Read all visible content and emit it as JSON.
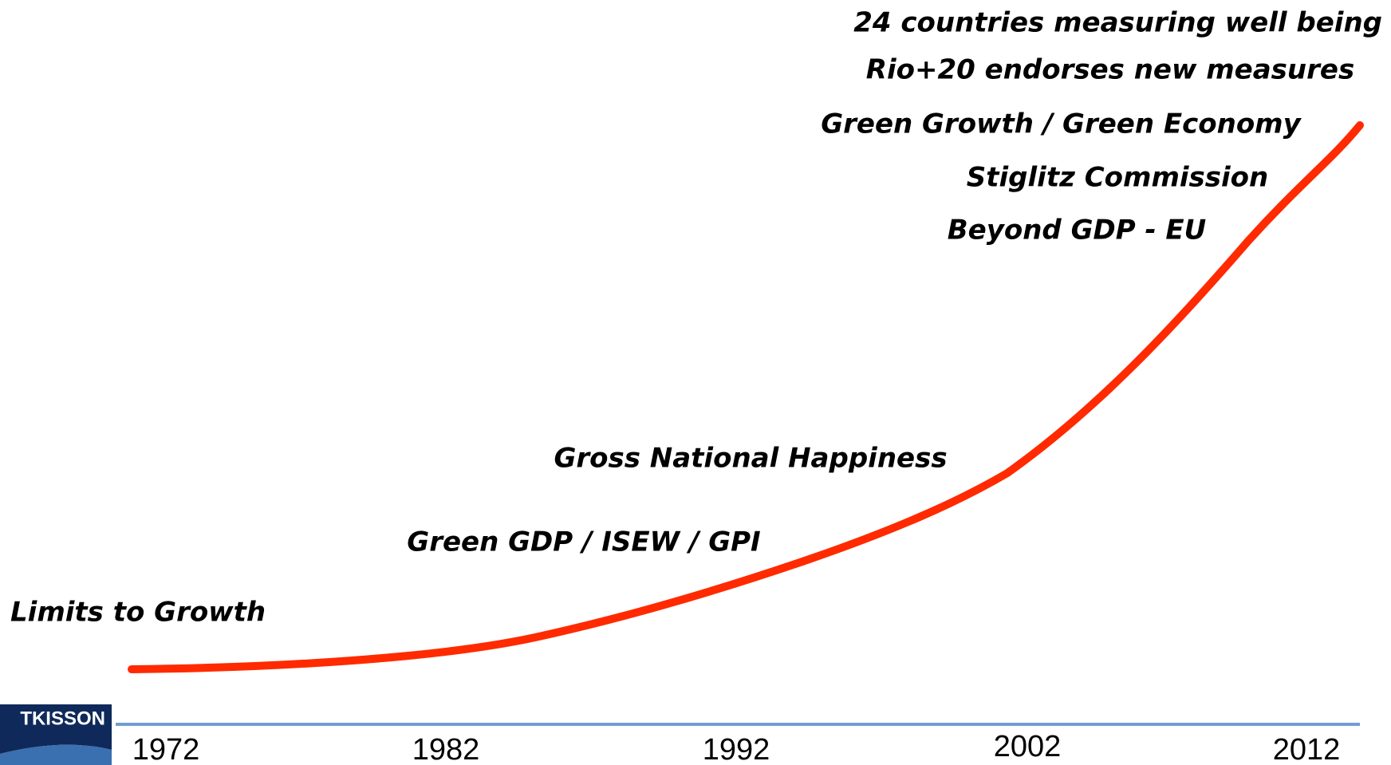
{
  "milestones": [
    "24 countries measuring well being",
    "Rio+20 endorses new measures",
    "Green Growth / Green Economy",
    "Stiglitz Commission",
    "Beyond GDP - EU",
    "Gross National Happiness",
    "Green GDP / ISEW / GPI",
    "Limits to Growth"
  ],
  "years": [
    "1972",
    "1982",
    "1992",
    "2002",
    "2012"
  ],
  "logo": "TKISSON"
}
